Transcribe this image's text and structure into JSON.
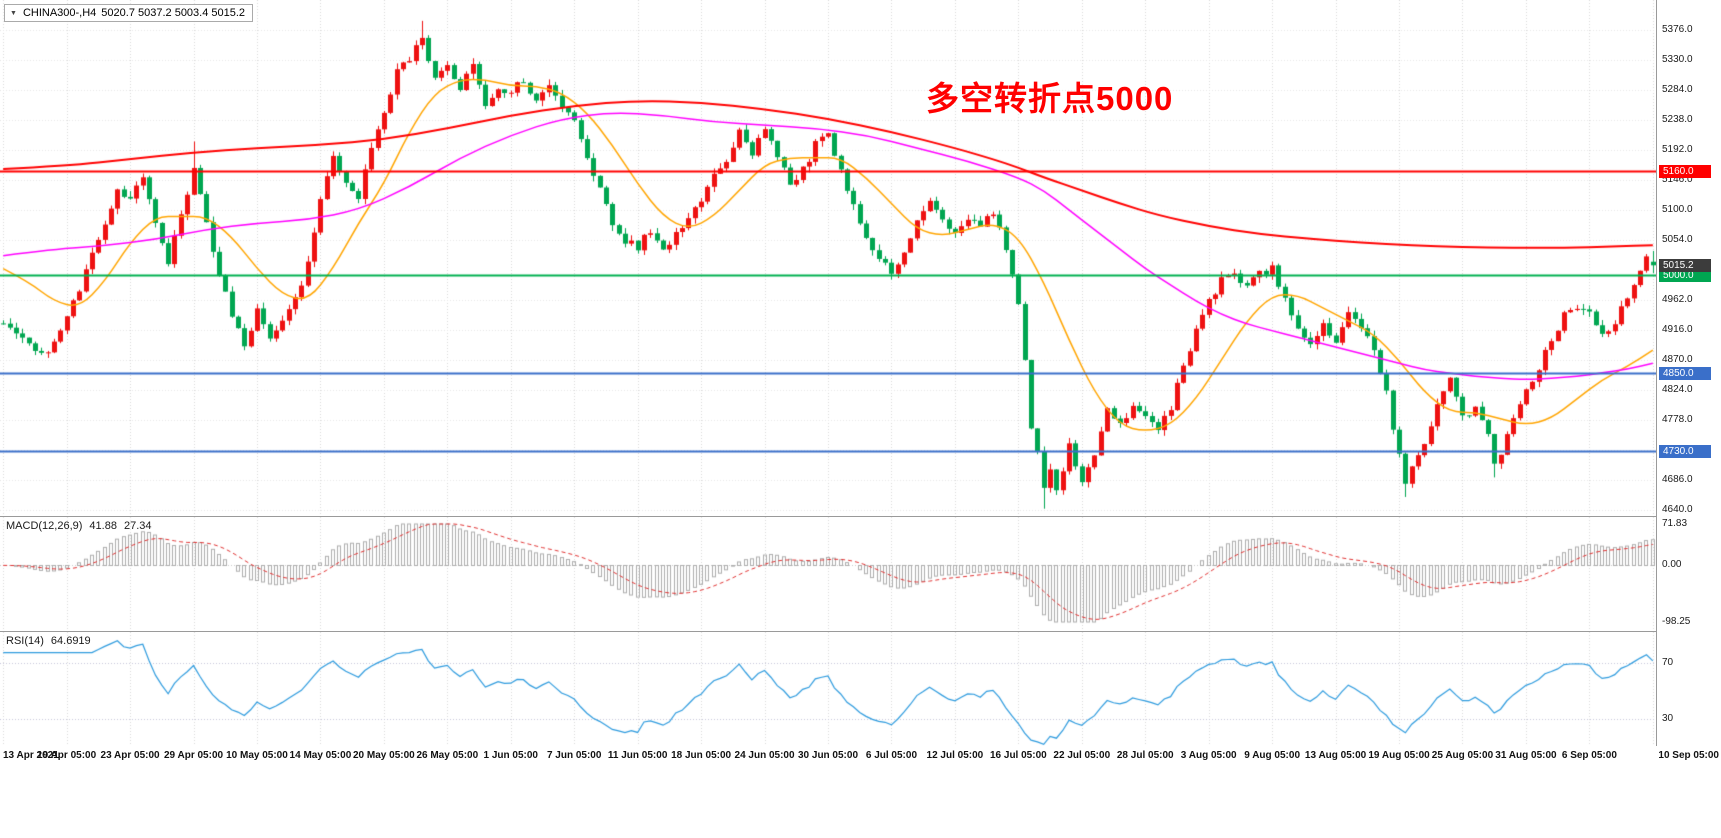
{
  "header": {
    "dropdown_icon": "▼",
    "symbol_period": "CHINA300-,H4",
    "ohlc": "5020.7 5037.2 5003.4 5015.2"
  },
  "annotation": {
    "text": "多空转折点5000",
    "color": "#FF0000"
  },
  "chart_data": {
    "type": "candlestick",
    "symbol": "CHINA300-",
    "period": "H4",
    "ohlc_current": {
      "open": 5020.7,
      "high": 5037.2,
      "low": 5003.4,
      "close": 5015.2
    },
    "ylim": [
      4640,
      5376
    ],
    "y_axis_ticks": [
      5376,
      5330,
      5284,
      5238,
      5192,
      5146,
      5100,
      5054,
      4962,
      4916,
      4870,
      4824,
      4778,
      4732,
      4686,
      4640
    ],
    "x_labels": [
      "13 Apr 2021",
      "19 Apr 05:00",
      "23 Apr 05:00",
      "29 Apr 05:00",
      "10 May 05:00",
      "14 May 05:00",
      "20 May 05:00",
      "26 May 05:00",
      "1 Jun 05:00",
      "7 Jun 05:00",
      "11 Jun 05:00",
      "18 Jun 05:00",
      "24 Jun 05:00",
      "30 Jun 05:00",
      "6 Jul 05:00",
      "12 Jul 05:00",
      "16 Jul 05:00",
      "22 Jul 05:00",
      "28 Jul 05:00",
      "3 Aug 05:00",
      "9 Aug 05:00",
      "13 Aug 05:00",
      "19 Aug 05:00",
      "25 Aug 05:00",
      "31 Aug 05:00",
      "6 Sep 05:00",
      "10 Sep 05:00"
    ],
    "candle_count": 261,
    "price_swings": [
      [
        0,
        4930
      ],
      [
        3,
        4900
      ],
      [
        6,
        4875
      ],
      [
        9,
        4910
      ],
      [
        12,
        4980
      ],
      [
        15,
        5060
      ],
      [
        18,
        5130
      ],
      [
        20,
        5120
      ],
      [
        22,
        5150
      ],
      [
        24,
        5080
      ],
      [
        26,
        5020
      ],
      [
        28,
        5100
      ],
      [
        30,
        5160
      ],
      [
        32,
        5080
      ],
      [
        34,
        5000
      ],
      [
        36,
        4940
      ],
      [
        38,
        4890
      ],
      [
        40,
        4950
      ],
      [
        42,
        4900
      ],
      [
        44,
        4930
      ],
      [
        46,
        4960
      ],
      [
        48,
        5020
      ],
      [
        50,
        5120
      ],
      [
        52,
        5180
      ],
      [
        54,
        5140
      ],
      [
        56,
        5120
      ],
      [
        58,
        5200
      ],
      [
        60,
        5250
      ],
      [
        62,
        5310
      ],
      [
        64,
        5330
      ],
      [
        66,
        5370
      ],
      [
        68,
        5300
      ],
      [
        70,
        5320
      ],
      [
        72,
        5290
      ],
      [
        74,
        5320
      ],
      [
        76,
        5260
      ],
      [
        78,
        5290
      ],
      [
        80,
        5280
      ],
      [
        82,
        5300
      ],
      [
        84,
        5270
      ],
      [
        86,
        5290
      ],
      [
        88,
        5260
      ],
      [
        90,
        5240
      ],
      [
        92,
        5180
      ],
      [
        94,
        5130
      ],
      [
        96,
        5080
      ],
      [
        98,
        5050
      ],
      [
        100,
        5045
      ],
      [
        102,
        5070
      ],
      [
        104,
        5040
      ],
      [
        106,
        5060
      ],
      [
        108,
        5090
      ],
      [
        110,
        5110
      ],
      [
        112,
        5150
      ],
      [
        114,
        5180
      ],
      [
        116,
        5220
      ],
      [
        118,
        5190
      ],
      [
        120,
        5230
      ],
      [
        122,
        5180
      ],
      [
        124,
        5140
      ],
      [
        126,
        5160
      ],
      [
        128,
        5200
      ],
      [
        130,
        5215
      ],
      [
        132,
        5160
      ],
      [
        134,
        5110
      ],
      [
        136,
        5060
      ],
      [
        138,
        5020
      ],
      [
        140,
        5005
      ],
      [
        142,
        5040
      ],
      [
        144,
        5080
      ],
      [
        146,
        5110
      ],
      [
        148,
        5080
      ],
      [
        150,
        5060
      ],
      [
        152,
        5090
      ],
      [
        154,
        5070
      ],
      [
        156,
        5100
      ],
      [
        158,
        5040
      ],
      [
        160,
        4960
      ],
      [
        161,
        4870
      ],
      [
        162,
        4760
      ],
      [
        163,
        4730
      ],
      [
        164,
        4680
      ],
      [
        165,
        4700
      ],
      [
        166,
        4670
      ],
      [
        167,
        4700
      ],
      [
        168,
        4740
      ],
      [
        169,
        4710
      ],
      [
        170,
        4680
      ],
      [
        171,
        4700
      ],
      [
        172,
        4720
      ],
      [
        173,
        4760
      ],
      [
        174,
        4790
      ],
      [
        176,
        4770
      ],
      [
        178,
        4800
      ],
      [
        180,
        4790
      ],
      [
        182,
        4760
      ],
      [
        184,
        4800
      ],
      [
        186,
        4860
      ],
      [
        188,
        4920
      ],
      [
        190,
        4960
      ],
      [
        192,
        4990
      ],
      [
        194,
        5000
      ],
      [
        196,
        4980
      ],
      [
        198,
        5000
      ],
      [
        200,
        5010
      ],
      [
        202,
        4960
      ],
      [
        204,
        4920
      ],
      [
        206,
        4890
      ],
      [
        208,
        4920
      ],
      [
        210,
        4900
      ],
      [
        212,
        4940
      ],
      [
        214,
        4920
      ],
      [
        216,
        4880
      ],
      [
        218,
        4820
      ],
      [
        220,
        4720
      ],
      [
        221,
        4680
      ],
      [
        222,
        4700
      ],
      [
        224,
        4740
      ],
      [
        226,
        4800
      ],
      [
        228,
        4840
      ],
      [
        230,
        4780
      ],
      [
        232,
        4800
      ],
      [
        234,
        4750
      ],
      [
        235,
        4710
      ],
      [
        236,
        4730
      ],
      [
        238,
        4780
      ],
      [
        240,
        4820
      ],
      [
        242,
        4860
      ],
      [
        244,
        4900
      ],
      [
        246,
        4940
      ],
      [
        248,
        4950
      ],
      [
        250,
        4940
      ],
      [
        252,
        4910
      ],
      [
        254,
        4930
      ],
      [
        256,
        4970
      ],
      [
        258,
        5010
      ],
      [
        259,
        5035
      ],
      [
        260,
        5015.2
      ]
    ],
    "spikes": [
      {
        "index": 66,
        "type": "high",
        "price": 5390
      },
      {
        "index": 30,
        "type": "high",
        "price": 5205
      },
      {
        "index": 164,
        "type": "low",
        "price": 4642
      },
      {
        "index": 221,
        "type": "low",
        "price": 4660
      },
      {
        "index": 235,
        "type": "low",
        "price": 4690
      }
    ],
    "ma_lines": [
      {
        "name": "ma-fast-orange",
        "color": "#FFA500",
        "width": 1.5,
        "points": [
          [
            0,
            5010
          ],
          [
            4,
            4990
          ],
          [
            8,
            4960
          ],
          [
            12,
            4950
          ],
          [
            16,
            4990
          ],
          [
            20,
            5050
          ],
          [
            24,
            5090
          ],
          [
            28,
            5090
          ],
          [
            32,
            5090
          ],
          [
            36,
            5060
          ],
          [
            40,
            5010
          ],
          [
            44,
            4970
          ],
          [
            48,
            4960
          ],
          [
            52,
            5010
          ],
          [
            56,
            5080
          ],
          [
            60,
            5140
          ],
          [
            64,
            5220
          ],
          [
            68,
            5280
          ],
          [
            72,
            5300
          ],
          [
            76,
            5300
          ],
          [
            80,
            5290
          ],
          [
            84,
            5290
          ],
          [
            88,
            5280
          ],
          [
            92,
            5250
          ],
          [
            96,
            5200
          ],
          [
            100,
            5140
          ],
          [
            104,
            5090
          ],
          [
            108,
            5070
          ],
          [
            112,
            5090
          ],
          [
            116,
            5130
          ],
          [
            120,
            5170
          ],
          [
            124,
            5180
          ],
          [
            128,
            5180
          ],
          [
            132,
            5180
          ],
          [
            136,
            5150
          ],
          [
            140,
            5110
          ],
          [
            144,
            5070
          ],
          [
            148,
            5060
          ],
          [
            152,
            5070
          ],
          [
            156,
            5080
          ],
          [
            160,
            5060
          ],
          [
            164,
            4990
          ],
          [
            168,
            4900
          ],
          [
            172,
            4820
          ],
          [
            176,
            4770
          ],
          [
            180,
            4760
          ],
          [
            184,
            4770
          ],
          [
            188,
            4810
          ],
          [
            192,
            4870
          ],
          [
            196,
            4930
          ],
          [
            200,
            4970
          ],
          [
            204,
            4970
          ],
          [
            208,
            4950
          ],
          [
            212,
            4930
          ],
          [
            216,
            4910
          ],
          [
            220,
            4870
          ],
          [
            224,
            4820
          ],
          [
            228,
            4790
          ],
          [
            232,
            4790
          ],
          [
            236,
            4780
          ],
          [
            240,
            4770
          ],
          [
            244,
            4780
          ],
          [
            248,
            4810
          ],
          [
            252,
            4840
          ],
          [
            256,
            4860
          ],
          [
            260,
            4885
          ]
        ]
      },
      {
        "name": "ma-mid-magenta",
        "color": "#FF00FF",
        "width": 1.5,
        "points": [
          [
            0,
            5030
          ],
          [
            8,
            5040
          ],
          [
            16,
            5045
          ],
          [
            24,
            5055
          ],
          [
            32,
            5070
          ],
          [
            40,
            5080
          ],
          [
            48,
            5085
          ],
          [
            56,
            5100
          ],
          [
            64,
            5135
          ],
          [
            72,
            5180
          ],
          [
            80,
            5215
          ],
          [
            88,
            5240
          ],
          [
            96,
            5250
          ],
          [
            104,
            5245
          ],
          [
            112,
            5235
          ],
          [
            120,
            5230
          ],
          [
            128,
            5225
          ],
          [
            136,
            5215
          ],
          [
            144,
            5195
          ],
          [
            152,
            5175
          ],
          [
            160,
            5150
          ],
          [
            164,
            5130
          ],
          [
            168,
            5100
          ],
          [
            172,
            5070
          ],
          [
            176,
            5040
          ],
          [
            180,
            5010
          ],
          [
            184,
            4985
          ],
          [
            188,
            4960
          ],
          [
            192,
            4940
          ],
          [
            196,
            4925
          ],
          [
            200,
            4915
          ],
          [
            204,
            4905
          ],
          [
            208,
            4895
          ],
          [
            212,
            4885
          ],
          [
            216,
            4875
          ],
          [
            220,
            4865
          ],
          [
            224,
            4855
          ],
          [
            228,
            4850
          ],
          [
            232,
            4845
          ],
          [
            236,
            4842
          ],
          [
            240,
            4840
          ],
          [
            244,
            4842
          ],
          [
            248,
            4845
          ],
          [
            252,
            4850
          ],
          [
            256,
            4856
          ],
          [
            260,
            4865
          ]
        ]
      },
      {
        "name": "ma-slow-red",
        "color": "#FF0000",
        "width": 2,
        "points": [
          [
            0,
            5163
          ],
          [
            10,
            5168
          ],
          [
            20,
            5178
          ],
          [
            30,
            5188
          ],
          [
            40,
            5195
          ],
          [
            50,
            5200
          ],
          [
            60,
            5208
          ],
          [
            70,
            5225
          ],
          [
            80,
            5245
          ],
          [
            90,
            5260
          ],
          [
            100,
            5268
          ],
          [
            110,
            5265
          ],
          [
            120,
            5255
          ],
          [
            130,
            5240
          ],
          [
            140,
            5220
          ],
          [
            150,
            5195
          ],
          [
            156,
            5178
          ],
          [
            160,
            5165
          ],
          [
            164,
            5150
          ],
          [
            170,
            5130
          ],
          [
            176,
            5110
          ],
          [
            182,
            5092
          ],
          [
            190,
            5075
          ],
          [
            198,
            5063
          ],
          [
            206,
            5056
          ],
          [
            214,
            5050
          ],
          [
            222,
            5046
          ],
          [
            230,
            5043
          ],
          [
            238,
            5042
          ],
          [
            246,
            5042
          ],
          [
            254,
            5044
          ],
          [
            260,
            5046
          ]
        ]
      }
    ],
    "hlines": [
      {
        "price": 5160,
        "color": "#FF0000",
        "width": 2
      },
      {
        "price": 5000,
        "color": "#00B050",
        "width": 2
      },
      {
        "price": 4850,
        "color": "#3A6FC9",
        "width": 2
      },
      {
        "price": 4730,
        "color": "#3A6FC9",
        "width": 2
      }
    ],
    "price_tags": [
      {
        "label": "5160.0",
        "price": 5160,
        "bg": "#FF0000",
        "name": "hline-5160-price-tag",
        "interactable": true
      },
      {
        "label": "5000.0",
        "price": 5000,
        "bg": "#00A651",
        "name": "hline-5000-price-tag",
        "interactable": true
      },
      {
        "label": "4850.0",
        "price": 4850,
        "bg": "#3A6FC9",
        "name": "hline-4850-price-tag",
        "interactable": true
      },
      {
        "label": "4730.0",
        "price": 4730,
        "bg": "#3A6FC9",
        "name": "hline-4730-price-tag",
        "interactable": true
      },
      {
        "label": "5015.2",
        "price": 5015.2,
        "bg": "#3C3C3C",
        "name": "current-price-tag",
        "interactable": false
      }
    ],
    "colors": {
      "bull": "#EE1111",
      "bear": "#00A651",
      "grid_v": "#D8D8D8",
      "grid_h": "#E6E6E6",
      "zero_line": "#C8C8C8",
      "macd_bar": "#ADADAD",
      "macd_signal": "#E03131",
      "rsi_line": "#2E9BDE",
      "rsi_level": "#C4C4D8"
    },
    "macd": {
      "title": "MACD(12,26,9)",
      "main_value": "41.88",
      "signal_value": "27.34",
      "params": [
        12,
        26,
        9
      ],
      "axis": [
        {
          "label": "71.83",
          "value": 71.83
        },
        {
          "label": "0.00",
          "value": 0
        },
        {
          "label": "-98.25",
          "value": -98.25
        }
      ]
    },
    "rsi": {
      "title": "RSI(14)",
      "value": "64.6919",
      "period": 14,
      "levels": [
        {
          "label": "70",
          "value": 70
        },
        {
          "label": "30",
          "value": 30
        }
      ]
    }
  }
}
